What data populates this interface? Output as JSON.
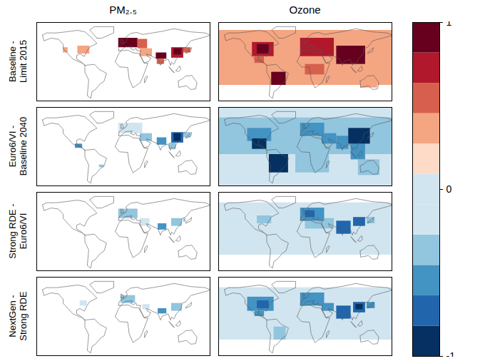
{
  "chart_data": {
    "type": "heatmap",
    "columns": [
      "PM₂.₅",
      "Ozone"
    ],
    "rows": [
      "Baseline -\nLimit 2015",
      "Euro6/VI -\nBaseline 2040",
      "Strong RDE -\nEuro6/VI",
      "NextGen -\nStrong RDE"
    ],
    "xlim": [
      -180,
      180
    ],
    "ylim": [
      -60,
      90
    ],
    "tick_labels": false,
    "colorbar": {
      "range": [
        -1,
        1
      ],
      "ticks": [
        -1,
        0,
        1
      ]
    },
    "cells": [
      [
        [
          [
            -95,
            -70,
            30,
            45,
            0.2
          ],
          [
            -125,
            -115,
            32,
            42,
            0.2
          ],
          [
            -10,
            30,
            42,
            60,
            0.9
          ],
          [
            0,
            25,
            45,
            55,
            1
          ],
          [
            30,
            50,
            40,
            58,
            0.4
          ],
          [
            35,
            60,
            25,
            40,
            0.3
          ],
          [
            68,
            90,
            20,
            32,
            0.8
          ],
          [
            70,
            85,
            10,
            20,
            0.4
          ],
          [
            100,
            125,
            22,
            42,
            0.7
          ],
          [
            105,
            122,
            28,
            40,
            1
          ],
          [
            125,
            140,
            32,
            42,
            0.5
          ]
        ],
        [
          [
            -180,
            180,
            -30,
            75,
            0.2
          ],
          [
            -180,
            180,
            10,
            60,
            0.3
          ],
          [
            -110,
            -65,
            25,
            52,
            0.6
          ],
          [
            -100,
            -75,
            30,
            48,
            0.9
          ],
          [
            -105,
            -85,
            12,
            25,
            0.5
          ],
          [
            -10,
            60,
            25,
            60,
            0.6
          ],
          [
            65,
            125,
            10,
            45,
            0.8
          ],
          [
            100,
            125,
            25,
            40,
            1
          ],
          [
            70,
            90,
            20,
            30,
            1
          ],
          [
            -70,
            -40,
            -30,
            -5,
            0.8
          ],
          [
            -60,
            -45,
            -25,
            -10,
            1
          ],
          [
            0,
            40,
            -10,
            10,
            0.4
          ],
          [
            115,
            150,
            -35,
            -20,
            0.3
          ]
        ]
      ],
      [
        [
          [
            -10,
            40,
            40,
            60,
            -0.2
          ],
          [
            35,
            60,
            25,
            40,
            -0.3
          ],
          [
            70,
            90,
            18,
            32,
            -0.6
          ],
          [
            95,
            110,
            10,
            22,
            -0.4
          ],
          [
            100,
            125,
            22,
            42,
            -0.8
          ],
          [
            105,
            120,
            25,
            40,
            -1
          ],
          [
            125,
            140,
            32,
            42,
            -0.4
          ],
          [
            -100,
            -85,
            12,
            20,
            -0.5
          ],
          [
            -50,
            -40,
            -25,
            -20,
            -0.3
          ]
        ],
        [
          [
            -180,
            180,
            -60,
            90,
            -0.2
          ],
          [
            -180,
            180,
            0,
            70,
            -0.4
          ],
          [
            -20,
            50,
            -35,
            35,
            -0.4
          ],
          [
            110,
            155,
            -40,
            -10,
            -0.4
          ],
          [
            -120,
            -70,
            25,
            50,
            -0.6
          ],
          [
            -110,
            -80,
            10,
            30,
            -0.9
          ],
          [
            -10,
            40,
            35,
            60,
            -0.5
          ],
          [
            35,
            65,
            20,
            40,
            -0.6
          ],
          [
            95,
            125,
            -10,
            20,
            -0.6
          ],
          [
            65,
            90,
            10,
            35,
            -0.6
          ],
          [
            90,
            135,
            20,
            50,
            -1
          ],
          [
            -75,
            -35,
            -35,
            0,
            -0.9
          ],
          [
            -65,
            -40,
            -30,
            -5,
            -1
          ]
        ]
      ],
      [
        [
          [
            -10,
            30,
            40,
            58,
            -0.3
          ],
          [
            0,
            15,
            45,
            55,
            -0.4
          ],
          [
            35,
            55,
            25,
            40,
            -0.2
          ],
          [
            72,
            90,
            18,
            30,
            -0.5
          ],
          [
            100,
            122,
            25,
            40,
            -0.3
          ],
          [
            125,
            130,
            33,
            40,
            -0.4
          ]
        ],
        [
          [
            -180,
            180,
            0,
            70,
            -0.15
          ],
          [
            -180,
            180,
            -30,
            0,
            -0.1
          ],
          [
            0,
            60,
            20,
            40,
            -0.4
          ],
          [
            -10,
            40,
            35,
            60,
            -0.6
          ],
          [
            0,
            20,
            42,
            55,
            -0.8
          ],
          [
            65,
            95,
            10,
            35,
            -0.7
          ],
          [
            100,
            125,
            25,
            42,
            -0.7
          ],
          [
            -100,
            -70,
            30,
            45,
            -0.3
          ],
          [
            128,
            145,
            30,
            42,
            -0.4
          ]
        ]
      ],
      [
        [
          [
            -5,
            25,
            40,
            55,
            -0.3
          ],
          [
            40,
            55,
            28,
            38,
            -0.2
          ],
          [
            72,
            90,
            20,
            30,
            -0.5
          ],
          [
            100,
            122,
            25,
            40,
            -0.4
          ],
          [
            -90,
            -75,
            35,
            45,
            -0.2
          ]
        ],
        [
          [
            -180,
            180,
            0,
            70,
            -0.2
          ],
          [
            -180,
            180,
            -30,
            0,
            -0.1
          ],
          [
            -120,
            -65,
            25,
            52,
            -0.6
          ],
          [
            -100,
            -75,
            30,
            45,
            -0.8
          ],
          [
            -105,
            -85,
            15,
            25,
            -0.6
          ],
          [
            -10,
            40,
            35,
            60,
            -0.6
          ],
          [
            35,
            60,
            25,
            40,
            -0.6
          ],
          [
            65,
            95,
            10,
            35,
            -0.8
          ],
          [
            100,
            125,
            22,
            42,
            -0.8
          ],
          [
            105,
            120,
            28,
            38,
            -1
          ],
          [
            -65,
            -40,
            -30,
            -5,
            -0.4
          ],
          [
            128,
            145,
            30,
            42,
            -0.5
          ]
        ]
      ]
    ]
  }
}
